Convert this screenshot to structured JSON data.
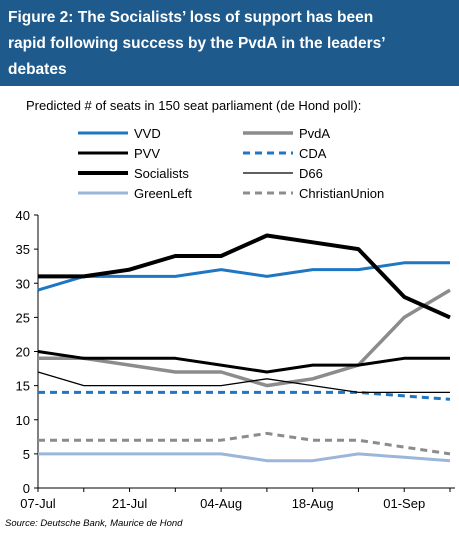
{
  "title_lines": [
    "Figure 2: The Socialists’ loss of support has been",
    "rapid following success by the PvdA in the leaders’",
    "debates"
  ],
  "source": "Source: Deutsche Bank, Maurice de Hond",
  "colors": {
    "title_bg": "#1f5a8c"
  },
  "chart_data": {
    "type": "line",
    "subtitle": "Predicted # of seats in 150 seat parliament (de Hond poll):",
    "x": [
      "07-Jul",
      "14-Jul",
      "21-Jul",
      "28-Jul",
      "04-Aug",
      "11-Aug",
      "18-Aug",
      "25-Aug",
      "01-Sep",
      "05-Sep"
    ],
    "x_tick_labels": [
      "07-Jul",
      "21-Jul",
      "04-Aug",
      "18-Aug",
      "01-Sep"
    ],
    "ylim": [
      0,
      40
    ],
    "y_ticks": [
      0,
      5,
      10,
      15,
      20,
      25,
      30,
      35,
      40
    ],
    "grid": false,
    "legend_position": "top",
    "series": [
      {
        "name": "VVD",
        "color": "#1f77c4",
        "dash": "solid",
        "width": 3,
        "values": [
          29,
          31,
          31,
          31,
          32,
          31,
          32,
          32,
          33,
          33
        ]
      },
      {
        "name": "PvdA",
        "color": "#8c8c8c",
        "dash": "solid",
        "width": 3.5,
        "values": [
          19,
          19,
          18,
          17,
          17,
          15,
          16,
          18,
          25,
          29
        ]
      },
      {
        "name": "PVV",
        "color": "#000000",
        "dash": "solid",
        "width": 3,
        "values": [
          20,
          19,
          19,
          19,
          18,
          17,
          18,
          18,
          19,
          19
        ]
      },
      {
        "name": "CDA",
        "color": "#1f77c4",
        "dash": "dashed",
        "width": 3,
        "values": [
          14,
          14,
          14,
          14,
          14,
          14,
          14,
          14,
          13.5,
          13
        ]
      },
      {
        "name": "Socialists",
        "color": "#000000",
        "dash": "solid",
        "width": 4,
        "values": [
          31,
          31,
          32,
          34,
          34,
          37,
          36,
          35,
          28,
          25
        ]
      },
      {
        "name": "D66",
        "color": "#000000",
        "dash": "solid",
        "width": 1.3,
        "values": [
          17,
          15,
          15,
          15,
          15,
          16,
          15,
          14,
          14,
          14
        ]
      },
      {
        "name": "GreenLeft",
        "color": "#9bb6d8",
        "dash": "solid",
        "width": 3,
        "values": [
          5,
          5,
          5,
          5,
          5,
          4,
          4,
          5,
          4.5,
          4
        ]
      },
      {
        "name": "ChristianUnion",
        "color": "#8c8c8c",
        "dash": "dashed",
        "width": 3,
        "values": [
          7,
          7,
          7,
          7,
          7,
          8,
          7,
          7,
          6,
          5
        ]
      }
    ]
  }
}
